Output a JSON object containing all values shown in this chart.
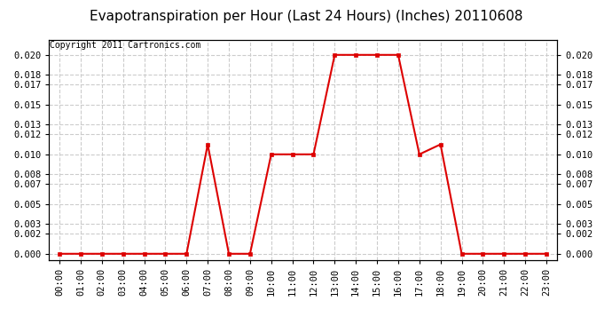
{
  "title": "Evapotranspiration per Hour (Last 24 Hours) (Inches) 20110608",
  "copyright": "Copyright 2011 Cartronics.com",
  "hours": [
    "00:00",
    "01:00",
    "02:00",
    "03:00",
    "04:00",
    "05:00",
    "06:00",
    "07:00",
    "08:00",
    "09:00",
    "10:00",
    "11:00",
    "12:00",
    "13:00",
    "14:00",
    "15:00",
    "16:00",
    "17:00",
    "18:00",
    "19:00",
    "20:00",
    "21:00",
    "22:00",
    "23:00"
  ],
  "values": [
    0.0,
    0.0,
    0.0,
    0.0,
    0.0,
    0.0,
    0.0,
    0.011,
    0.0,
    0.0,
    0.01,
    0.01,
    0.01,
    0.02,
    0.02,
    0.02,
    0.02,
    0.01,
    0.011,
    0.0,
    0.0,
    0.0,
    0.0,
    0.0
  ],
  "yticks": [
    0.0,
    0.002,
    0.003,
    0.005,
    0.007,
    0.008,
    0.01,
    0.012,
    0.013,
    0.015,
    0.017,
    0.018,
    0.02
  ],
  "ylim": [
    -0.0006,
    0.0215
  ],
  "line_color": "#dd0000",
  "marker_color": "#dd0000",
  "grid_color": "#cccccc",
  "bg_color": "#ffffff",
  "title_fontsize": 11,
  "copyright_fontsize": 7,
  "tick_fontsize": 7.5
}
